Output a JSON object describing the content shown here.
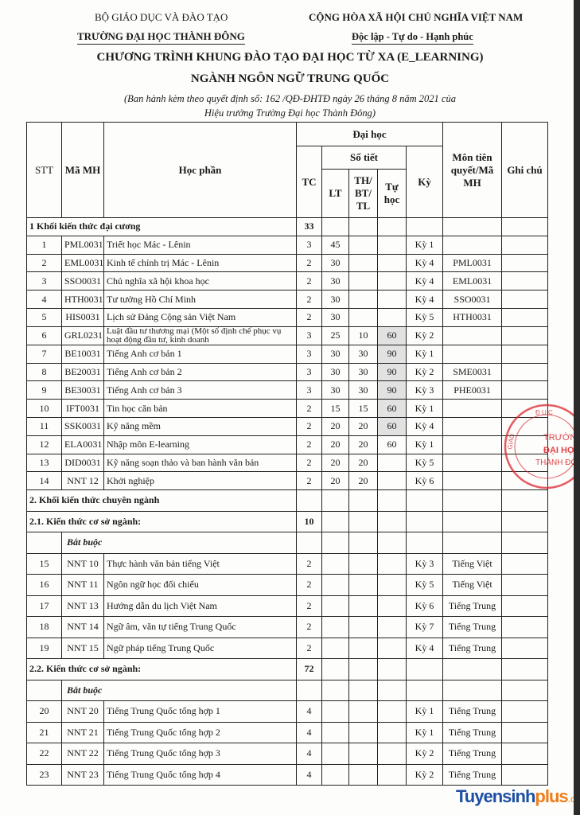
{
  "header": {
    "ministry": "BỘ GIÁO DỤC VÀ ĐÀO TẠO",
    "university": "TRƯỜNG ĐẠI HỌC THÀNH ĐÔNG",
    "republic": "CỘNG HÒA XÃ HỘI CHỦ NGHĨA VIỆT NAM",
    "motto": "Độc lập - Tự do - Hạnh phúc",
    "title": "CHƯƠNG TRÌNH KHUNG ĐÀO TẠO ĐẠI HỌC TỪ XA (E_LEARNING)",
    "major": "NGÀNH NGÔN NGỮ TRUNG QUỐC",
    "decree_line1": "(Ban hành kèm theo quyết định số: 162 /QĐ-ĐHTĐ ngày 26 tháng 8 năm 2021 của",
    "decree_line2": "Hiệu trưởng Trường Đại học Thành Đông)"
  },
  "table": {
    "headers": {
      "stt": "STT",
      "code": "Mã MH",
      "name": "Học phần",
      "dai_hoc": "Đại học",
      "tc": "TC",
      "so_tiet": "Số tiết",
      "lt": "LT",
      "th": "TH/ BT/ TL",
      "tu_hoc": "Tự học",
      "ky": "Kỳ",
      "prereq": "Môn tiên quyết/Mã MH",
      "note": "Ghi chú"
    },
    "rows": [
      {
        "type": "section",
        "label": "1 Khối kiến thức đại cương",
        "tc": "33"
      },
      {
        "type": "course",
        "stt": "1",
        "code": "PML0031",
        "name": "Triết học Mác - Lênin",
        "tc": "3",
        "lt": "45",
        "th": "",
        "tu_hoc": "",
        "ky": "Kỳ 1",
        "prereq": ""
      },
      {
        "type": "course",
        "stt": "2",
        "code": "EML0031",
        "name": "Kinh tế chính trị Mác - Lênin",
        "tc": "2",
        "lt": "30",
        "th": "",
        "tu_hoc": "",
        "ky": "Kỳ 4",
        "prereq": "PML0031"
      },
      {
        "type": "course",
        "stt": "3",
        "code": "SSO0031",
        "name": "Chủ nghĩa xã hội khoa học",
        "tc": "2",
        "lt": "30",
        "th": "",
        "tu_hoc": "",
        "ky": "Kỳ 4",
        "prereq": "EML0031"
      },
      {
        "type": "course",
        "stt": "4",
        "code": "HTH0031",
        "name": "Tư tưởng Hồ Chí Minh",
        "tc": "2",
        "lt": "30",
        "th": "",
        "tu_hoc": "",
        "ky": "Kỳ 4",
        "prereq": "SSO0031"
      },
      {
        "type": "course",
        "stt": "5",
        "code": "HIS0031",
        "name": "Lịch sử Đảng Cộng sản Việt Nam",
        "tc": "2",
        "lt": "30",
        "th": "",
        "tu_hoc": "",
        "ky": "Kỳ 5",
        "prereq": "HTH0031"
      },
      {
        "type": "course",
        "stt": "6",
        "code": "GRL0231",
        "name": "Luật đầu tư thương mại (Một số định chế phục vụ hoạt động đầu tư, kinh doanh",
        "tc": "3",
        "lt": "25",
        "th": "10",
        "tu_hoc": "60",
        "ky": "Kỳ 2",
        "prereq": "",
        "shaded": true,
        "wrap": true
      },
      {
        "type": "course",
        "stt": "7",
        "code": "BE10031",
        "name": "Tiếng Anh cơ bản 1",
        "tc": "3",
        "lt": "30",
        "th": "30",
        "tu_hoc": "90",
        "ky": "Kỳ 1",
        "prereq": "",
        "shaded": true
      },
      {
        "type": "course",
        "stt": "8",
        "code": "BE20031",
        "name": "Tiếng Anh cơ bản 2",
        "tc": "3",
        "lt": "30",
        "th": "30",
        "tu_hoc": "90",
        "ky": "Kỳ 2",
        "prereq": "SME0031",
        "shaded": true
      },
      {
        "type": "course",
        "stt": "9",
        "code": "BE30031",
        "name": "Tiếng Anh cơ bản 3",
        "tc": "3",
        "lt": "30",
        "th": "30",
        "tu_hoc": "90",
        "ky": "Kỳ 3",
        "prereq": "PHE0031",
        "shaded": true
      },
      {
        "type": "course",
        "stt": "10",
        "code": "IFT0031",
        "name": "Tin học căn bản",
        "tc": "2",
        "lt": "15",
        "th": "15",
        "tu_hoc": "60",
        "ky": "Kỳ 1",
        "prereq": "",
        "shaded": true
      },
      {
        "type": "course",
        "stt": "11",
        "code": "SSK0031",
        "name": "Kỹ năng mềm",
        "tc": "2",
        "lt": "20",
        "th": "20",
        "tu_hoc": "60",
        "ky": "Kỳ 4",
        "prereq": "",
        "shaded": true
      },
      {
        "type": "course",
        "stt": "12",
        "code": "ELA0031",
        "name": "Nhập môn E-learning",
        "tc": "2",
        "lt": "20",
        "th": "20",
        "tu_hoc": "60",
        "ky": "Kỳ 1",
        "prereq": ""
      },
      {
        "type": "course",
        "stt": "13",
        "code": "DID0031",
        "name": "Kỹ năng soạn thảo và ban hành văn bản",
        "tc": "2",
        "lt": "20",
        "th": "20",
        "tu_hoc": "",
        "ky": "Kỳ 5",
        "prereq": ""
      },
      {
        "type": "course",
        "stt": "14",
        "code": "NNT 12",
        "name": "Khởi nghiệp",
        "tc": "2",
        "lt": "20",
        "th": "20",
        "tu_hoc": "",
        "ky": "Kỳ 6",
        "prereq": ""
      },
      {
        "type": "section",
        "label": "2. Khối kiến thức chuyên ngành",
        "tc": ""
      },
      {
        "type": "section",
        "label": "2.1. Kiến thức cơ sở ngành:",
        "tc": "10"
      },
      {
        "type": "subheader",
        "label": "Bắt buộc"
      },
      {
        "type": "course",
        "stt": "15",
        "code": "NNT 10",
        "name": "Thực hành văn bản tiếng Việt",
        "tc": "2",
        "lt": "",
        "th": "",
        "tu_hoc": "",
        "ky": "Kỳ 3",
        "prereq": "Tiếng Việt"
      },
      {
        "type": "course",
        "stt": "16",
        "code": "NNT 11",
        "name": "Ngôn ngữ học đối chiếu",
        "tc": "2",
        "lt": "",
        "th": "",
        "tu_hoc": "",
        "ky": "Kỳ 5",
        "prereq": "Tiếng Việt"
      },
      {
        "type": "course",
        "stt": "17",
        "code": "NNT 13",
        "name": "Hướng dẫn du lịch Việt Nam",
        "tc": "2",
        "lt": "",
        "th": "",
        "tu_hoc": "",
        "ky": "Kỳ 6",
        "prereq": "Tiếng Trung"
      },
      {
        "type": "course",
        "stt": "18",
        "code": "NNT 14",
        "name": "Ngữ âm, văn tự tiếng Trung Quốc",
        "tc": "2",
        "lt": "",
        "th": "",
        "tu_hoc": "",
        "ky": "Kỳ 7",
        "prereq": "Tiếng Trung"
      },
      {
        "type": "course",
        "stt": "19",
        "code": "NNT 15",
        "name": "Ngữ pháp tiếng Trung Quốc",
        "tc": "2",
        "lt": "",
        "th": "",
        "tu_hoc": "",
        "ky": "Kỳ 4",
        "prereq": "Tiếng Trung"
      },
      {
        "type": "section",
        "label": "2.2. Kiến thức cơ sở ngành:",
        "tc": "72"
      },
      {
        "type": "subheader",
        "label": "Bắt buộc"
      },
      {
        "type": "course",
        "stt": "20",
        "code": "NNT 20",
        "name": "Tiếng Trung Quốc tổng hợp 1",
        "tc": "4",
        "lt": "",
        "th": "",
        "tu_hoc": "",
        "ky": "Kỳ 1",
        "prereq": "Tiếng Trung"
      },
      {
        "type": "course",
        "stt": "21",
        "code": "NNT 21",
        "name": "Tiếng Trung Quốc tổng hợp 2",
        "tc": "4",
        "lt": "",
        "th": "",
        "tu_hoc": "",
        "ky": "Kỳ 1",
        "prereq": "Tiếng Trung"
      },
      {
        "type": "course",
        "stt": "22",
        "code": "NNT 22",
        "name": "Tiếng Trung Quốc tổng hợp 3",
        "tc": "4",
        "lt": "",
        "th": "",
        "tu_hoc": "",
        "ky": "Kỳ 2",
        "prereq": "Tiếng Trung"
      },
      {
        "type": "course",
        "stt": "23",
        "code": "NNT 23",
        "name": "Tiếng Trung Quốc tổng hợp 4",
        "tc": "4",
        "lt": "",
        "th": "",
        "tu_hoc": "",
        "ky": "Kỳ 2",
        "prereq": "Tiếng Trung"
      }
    ]
  },
  "stamp": {
    "text_outer": "BỘ GIÁO DỤC VÀ",
    "text_inner": [
      "TRƯỜNG",
      "ĐẠI HỌC",
      "THÀNH ĐÔNG"
    ],
    "color": "#d9262c"
  },
  "watermark": {
    "part1": "Tuyensinh",
    "part2": "plus",
    "part3": ".com",
    "color_blue": "#1e4fa3",
    "color_orange": "#f07d1a"
  }
}
